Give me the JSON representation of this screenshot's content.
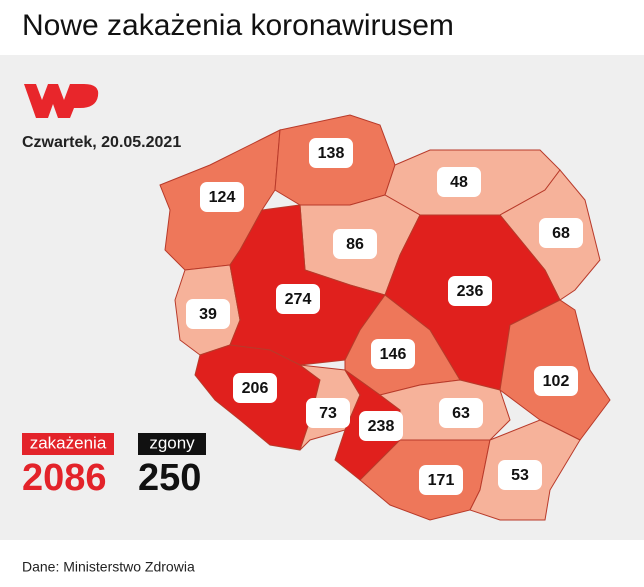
{
  "header": {
    "title": "Nowe zakażenia koronawirusem",
    "date": "Czwartek, 20.05.2021"
  },
  "map": {
    "regions": [
      {
        "value": 124,
        "color": "#ee775a"
      },
      {
        "value": 138,
        "color": "#ee775a"
      },
      {
        "value": 48,
        "color": "#f6b29a"
      },
      {
        "value": 68,
        "color": "#f6b29a"
      },
      {
        "value": 86,
        "color": "#f6b29a"
      },
      {
        "value": 39,
        "color": "#f6b29a"
      },
      {
        "value": 274,
        "color": "#e0201d"
      },
      {
        "value": 236,
        "color": "#e0201d"
      },
      {
        "value": 146,
        "color": "#ee775a"
      },
      {
        "value": 102,
        "color": "#ee775a"
      },
      {
        "value": 206,
        "color": "#e0201d"
      },
      {
        "value": 73,
        "color": "#f6b29a"
      },
      {
        "value": 238,
        "color": "#e0201d"
      },
      {
        "value": 63,
        "color": "#f6b29a"
      },
      {
        "value": 171,
        "color": "#ee775a"
      },
      {
        "value": 53,
        "color": "#f6b29a"
      }
    ]
  },
  "summary": {
    "cases_label": "zakażenia",
    "cases": 2086,
    "deaths_label": "zgony",
    "deaths": 250
  },
  "footer": {
    "source": "Dane: Ministerstwo Zdrowia"
  }
}
